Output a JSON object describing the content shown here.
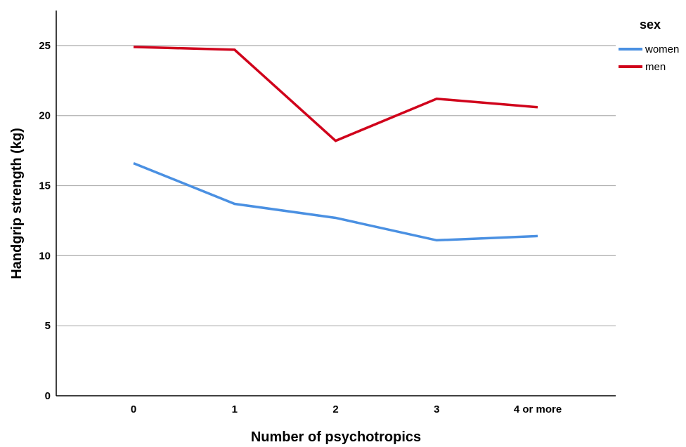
{
  "chart_data": {
    "type": "line",
    "xlabel": "Number of psychotropics",
    "ylabel": "Handgrip strength (kg)",
    "categories": [
      "0",
      "1",
      "2",
      "3",
      "4 or more"
    ],
    "ylim": [
      0,
      27.5
    ],
    "yticks": [
      "0",
      "5",
      "10",
      "15",
      "20",
      "25"
    ],
    "grid": "horizontal",
    "legend": {
      "title": "sex",
      "placement": "top-right"
    },
    "series": [
      {
        "name": "women",
        "color": "#4a90e2",
        "values": [
          16.6,
          13.7,
          12.7,
          11.1,
          11.4
        ]
      },
      {
        "name": "men",
        "color": "#d0021b",
        "values": [
          24.9,
          24.7,
          18.2,
          21.2,
          20.6
        ]
      }
    ]
  }
}
